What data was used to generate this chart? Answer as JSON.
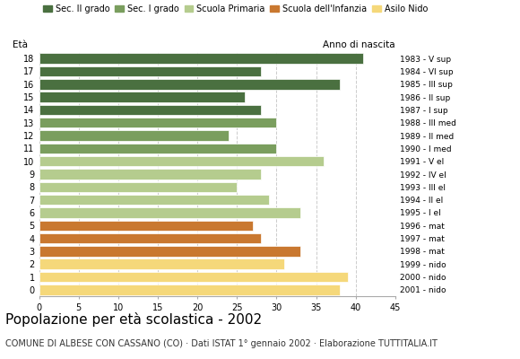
{
  "ages": [
    18,
    17,
    16,
    15,
    14,
    13,
    12,
    11,
    10,
    9,
    8,
    7,
    6,
    5,
    4,
    3,
    2,
    1,
    0
  ],
  "values": [
    41,
    28,
    38,
    26,
    28,
    30,
    24,
    30,
    36,
    28,
    25,
    29,
    33,
    27,
    28,
    33,
    31,
    39,
    38
  ],
  "anno_nascita": [
    "1983 - V sup",
    "1984 - VI sup",
    "1985 - III sup",
    "1986 - II sup",
    "1987 - I sup",
    "1988 - III med",
    "1989 - II med",
    "1990 - I med",
    "1991 - V el",
    "1992 - IV el",
    "1993 - III el",
    "1994 - II el",
    "1995 - I el",
    "1996 - mat",
    "1997 - mat",
    "1998 - mat",
    "1999 - nido",
    "2000 - nido",
    "2001 - nido"
  ],
  "colors": [
    "#4a7040",
    "#4a7040",
    "#4a7040",
    "#4a7040",
    "#4a7040",
    "#7a9e5e",
    "#7a9e5e",
    "#7a9e5e",
    "#b5cc8e",
    "#b5cc8e",
    "#b5cc8e",
    "#b5cc8e",
    "#b5cc8e",
    "#c97830",
    "#c97830",
    "#c97830",
    "#f5d87a",
    "#f5d87a",
    "#f5d87a"
  ],
  "legend_labels": [
    "Sec. II grado",
    "Sec. I grado",
    "Scuola Primaria",
    "Scuola dell'Infanzia",
    "Asilo Nido"
  ],
  "legend_colors": [
    "#4a7040",
    "#7a9e5e",
    "#b5cc8e",
    "#c97830",
    "#f5d87a"
  ],
  "xlabel_age": "Età",
  "xlabel_birth": "Anno di nascita",
  "xlim": [
    0,
    45
  ],
  "xticks": [
    0,
    5,
    10,
    15,
    20,
    25,
    30,
    35,
    40,
    45
  ],
  "title": "Popolazione per età scolastica - 2002",
  "subtitle": "COMUNE DI ALBESE CON CASSANO (CO) · Dati ISTAT 1° gennaio 2002 · Elaborazione TUTTITALIA.IT",
  "background_color": "#ffffff",
  "bar_height": 0.8,
  "grid_color": "#cccccc",
  "title_fontsize": 11,
  "subtitle_fontsize": 7,
  "tick_fontsize": 7,
  "legend_fontsize": 7,
  "axis_label_fontsize": 7.5
}
